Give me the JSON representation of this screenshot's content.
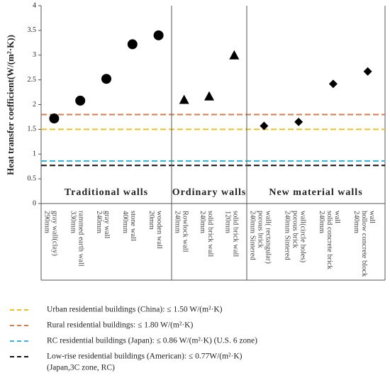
{
  "chart_data": {
    "type": "scatter",
    "y_label": "Heat transfer coefficient(W/(m²·K))",
    "ylim": [
      0,
      4
    ],
    "yticks": [
      0,
      0.5,
      1,
      1.5,
      2,
      2.5,
      3,
      3.5,
      4
    ],
    "groups": [
      {
        "name": "Traditional walls",
        "marker": "circle",
        "color": "#000000",
        "categories": [
          [
            "290mm",
            "gray wall(clay)"
          ],
          [
            "330mm",
            "rammed earth wall"
          ],
          [
            "240mm",
            "gray wall"
          ],
          [
            "400mm",
            "stone wall"
          ],
          [
            "20mm",
            "wooden wall"
          ]
        ],
        "values": [
          1.72,
          2.08,
          2.52,
          3.22,
          3.4
        ]
      },
      {
        "name": "Ordinary walls",
        "marker": "triangle",
        "color": "#000000",
        "categories": [
          [
            "240mm",
            "Rowlock wall"
          ],
          [
            "240mm",
            "solid brick wall"
          ],
          [
            "120mm",
            "solid brick wall"
          ]
        ],
        "values": [
          2.1,
          2.17,
          3.0
        ]
      },
      {
        "name": "New material walls",
        "marker": "diamond",
        "color": "#000000",
        "categories": [
          [
            "240mm Sintered",
            "porous brick",
            "wall( rectangular)"
          ],
          [
            "240mm Sintered",
            "porous brick",
            "wall(circle holes)"
          ],
          [
            "240mm",
            "solid concrete brick",
            "wall"
          ],
          [
            "240mm",
            "hollow concrete block",
            "wall"
          ]
        ],
        "values": [
          1.57,
          1.65,
          2.42,
          2.67
        ]
      }
    ],
    "reference_lines": [
      {
        "name": [
          "Urban residential buildings (China): ≤ 1.50 W/(m²·K)"
        ],
        "value": 1.5,
        "color": "#f0c020"
      },
      {
        "name": [
          "Rural residential buildings: ≤ 1.80 W/(m²·K)"
        ],
        "value": 1.8,
        "color": "#d97b4a"
      },
      {
        "name": [
          "RC residential buildings (Japan): ≤ 0.86 W/(m²·K) (U.S. 6 zone)"
        ],
        "value": 0.86,
        "color": "#30b8e0"
      },
      {
        "name": [
          "Low-rise residential buildings (American): ≤ 0.77W/(m²·K)",
          "(Japan,3C zone, RC)"
        ],
        "value": 0.77,
        "color": "#111111"
      }
    ]
  }
}
